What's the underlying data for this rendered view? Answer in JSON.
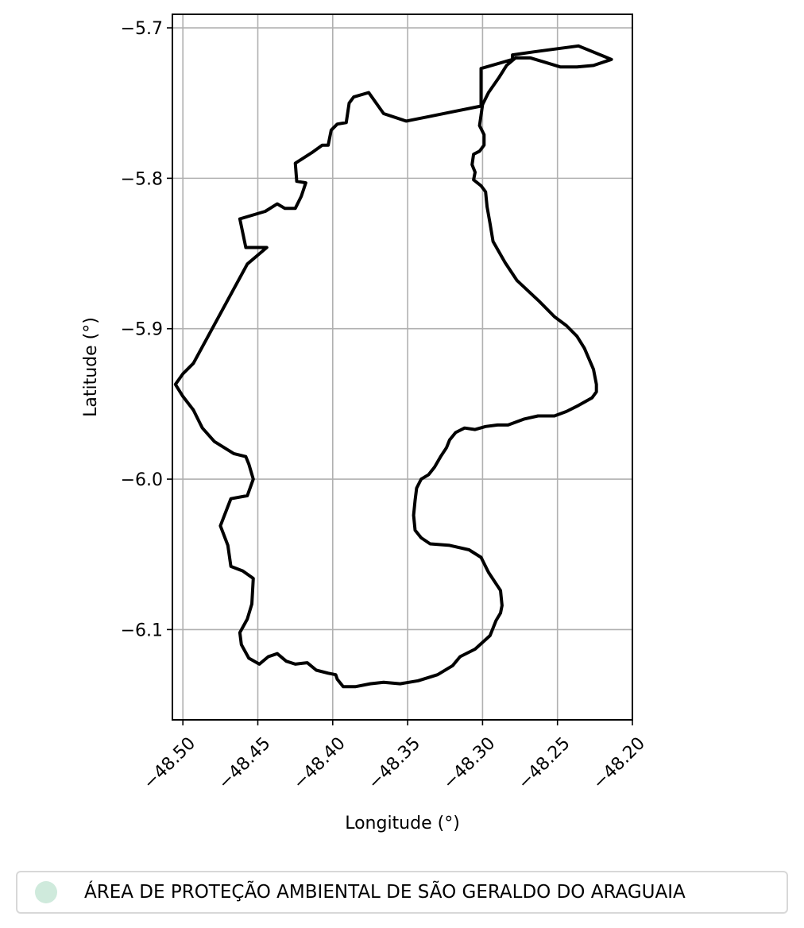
{
  "chart_data": {
    "type": "map",
    "xlabel": "Longitude (°)",
    "ylabel": "Latitude (°)",
    "xlim": [
      -48.507,
      -48.2
    ],
    "ylim": [
      -6.16,
      -5.691
    ],
    "x_ticks": [
      {
        "value": -48.5,
        "label": "−48.50"
      },
      {
        "value": -48.45,
        "label": "−48.45"
      },
      {
        "value": -48.4,
        "label": "−48.40"
      },
      {
        "value": -48.35,
        "label": "−48.35"
      },
      {
        "value": -48.3,
        "label": "−48.30"
      },
      {
        "value": -48.25,
        "label": "−48.25"
      },
      {
        "value": -48.2,
        "label": "−48.20"
      }
    ],
    "y_ticks": [
      {
        "value": -5.7,
        "label": "−5.7"
      },
      {
        "value": -5.8,
        "label": "−5.8"
      },
      {
        "value": -5.9,
        "label": "−5.9"
      },
      {
        "value": -6.0,
        "label": "−6.0"
      },
      {
        "value": -6.1,
        "label": "−6.1"
      }
    ],
    "grid": true,
    "boundary_color": "#000000",
    "fill_color": "#cfeadc",
    "legend_position": "below",
    "legend": [
      {
        "label": "ÁREA DE PROTEÇÃO AMBIENTAL DE SÃO GERALDO DO ARAGUAIA",
        "color": "#cfeadc"
      }
    ],
    "boundary": [
      [
        -48.301,
        -5.727
      ],
      [
        -48.28,
        -5.721
      ],
      [
        -48.28,
        -5.718
      ],
      [
        -48.266,
        -5.716
      ],
      [
        -48.236,
        -5.712
      ],
      [
        -48.214,
        -5.721
      ],
      [
        -48.226,
        -5.725
      ],
      [
        -48.237,
        -5.726
      ],
      [
        -48.248,
        -5.726
      ],
      [
        -48.258,
        -5.723
      ],
      [
        -48.268,
        -5.72
      ],
      [
        -48.278,
        -5.72
      ],
      [
        -48.284,
        -5.725
      ],
      [
        -48.289,
        -5.733
      ],
      [
        -48.296,
        -5.743
      ],
      [
        -48.3,
        -5.751
      ],
      [
        -48.301,
        -5.758
      ],
      [
        -48.302,
        -5.765
      ],
      [
        -48.299,
        -5.771
      ],
      [
        -48.299,
        -5.778
      ],
      [
        -48.302,
        -5.782
      ],
      [
        -48.306,
        -5.784
      ],
      [
        -48.307,
        -5.791
      ],
      [
        -48.305,
        -5.796
      ],
      [
        -48.306,
        -5.801
      ],
      [
        -48.301,
        -5.805
      ],
      [
        -48.298,
        -5.809
      ],
      [
        -48.297,
        -5.819
      ],
      [
        -48.295,
        -5.83
      ],
      [
        -48.293,
        -5.842
      ],
      [
        -48.285,
        -5.856
      ],
      [
        -48.277,
        -5.868
      ],
      [
        -48.262,
        -5.882
      ],
      [
        -48.252,
        -5.892
      ],
      [
        -48.244,
        -5.898
      ],
      [
        -48.237,
        -5.905
      ],
      [
        -48.232,
        -5.913
      ],
      [
        -48.229,
        -5.92
      ],
      [
        -48.226,
        -5.927
      ],
      [
        -48.224,
        -5.937
      ],
      [
        -48.224,
        -5.942
      ],
      [
        -48.227,
        -5.946
      ],
      [
        -48.236,
        -5.951
      ],
      [
        -48.244,
        -5.955
      ],
      [
        -48.252,
        -5.958
      ],
      [
        -48.263,
        -5.958
      ],
      [
        -48.272,
        -5.96
      ],
      [
        -48.283,
        -5.964
      ],
      [
        -48.29,
        -5.964
      ],
      [
        -48.298,
        -5.965
      ],
      [
        -48.305,
        -5.967
      ],
      [
        -48.312,
        -5.966
      ],
      [
        -48.318,
        -5.969
      ],
      [
        -48.322,
        -5.974
      ],
      [
        -48.324,
        -5.979
      ],
      [
        -48.328,
        -5.985
      ],
      [
        -48.332,
        -5.992
      ],
      [
        -48.336,
        -5.997
      ],
      [
        -48.341,
        -6.0
      ],
      [
        -48.344,
        -6.006
      ],
      [
        -48.345,
        -6.014
      ],
      [
        -48.346,
        -6.024
      ],
      [
        -48.345,
        -6.034
      ],
      [
        -48.341,
        -6.039
      ],
      [
        -48.335,
        -6.043
      ],
      [
        -48.322,
        -6.044
      ],
      [
        -48.309,
        -6.047
      ],
      [
        -48.301,
        -6.052
      ],
      [
        -48.296,
        -6.062
      ],
      [
        -48.288,
        -6.074
      ],
      [
        -48.287,
        -6.084
      ],
      [
        -48.288,
        -6.089
      ],
      [
        -48.291,
        -6.094
      ],
      [
        -48.295,
        -6.104
      ],
      [
        -48.305,
        -6.113
      ],
      [
        -48.315,
        -6.118
      ],
      [
        -48.32,
        -6.124
      ],
      [
        -48.33,
        -6.13
      ],
      [
        -48.343,
        -6.134
      ],
      [
        -48.355,
        -6.136
      ],
      [
        -48.366,
        -6.135
      ],
      [
        -48.375,
        -6.136
      ],
      [
        -48.385,
        -6.138
      ],
      [
        -48.393,
        -6.138
      ],
      [
        -48.397,
        -6.133
      ],
      [
        -48.398,
        -6.13
      ],
      [
        -48.403,
        -6.129
      ],
      [
        -48.411,
        -6.127
      ],
      [
        -48.417,
        -6.122
      ],
      [
        -48.425,
        -6.123
      ],
      [
        -48.431,
        -6.121
      ],
      [
        -48.437,
        -6.116
      ],
      [
        -48.443,
        -6.118
      ],
      [
        -48.449,
        -6.123
      ],
      [
        -48.456,
        -6.119
      ],
      [
        -48.461,
        -6.11
      ],
      [
        -48.462,
        -6.102
      ],
      [
        -48.457,
        -6.093
      ],
      [
        -48.454,
        -6.083
      ],
      [
        -48.453,
        -6.066
      ],
      [
        -48.46,
        -6.061
      ],
      [
        -48.468,
        -6.058
      ],
      [
        -48.47,
        -6.044
      ],
      [
        -48.475,
        -6.031
      ],
      [
        -48.468,
        -6.013
      ],
      [
        -48.457,
        -6.011
      ],
      [
        -48.453,
        -6.0
      ],
      [
        -48.456,
        -5.99
      ],
      [
        -48.458,
        -5.985
      ],
      [
        -48.466,
        -5.983
      ],
      [
        -48.479,
        -5.975
      ],
      [
        -48.487,
        -5.966
      ],
      [
        -48.493,
        -5.954
      ],
      [
        -48.5,
        -5.945
      ],
      [
        -48.505,
        -5.937
      ],
      [
        -48.5,
        -5.93
      ],
      [
        -48.493,
        -5.923
      ],
      [
        -48.457,
        -5.857
      ],
      [
        -48.444,
        -5.846
      ],
      [
        -48.458,
        -5.846
      ],
      [
        -48.462,
        -5.827
      ],
      [
        -48.445,
        -5.822
      ],
      [
        -48.437,
        -5.817
      ],
      [
        -48.432,
        -5.82
      ],
      [
        -48.425,
        -5.82
      ],
      [
        -48.421,
        -5.812
      ],
      [
        -48.418,
        -5.803
      ],
      [
        -48.424,
        -5.802
      ],
      [
        -48.425,
        -5.79
      ],
      [
        -48.414,
        -5.783
      ],
      [
        -48.407,
        -5.778
      ],
      [
        -48.403,
        -5.778
      ],
      [
        -48.401,
        -5.768
      ],
      [
        -48.397,
        -5.764
      ],
      [
        -48.391,
        -5.763
      ],
      [
        -48.389,
        -5.75
      ],
      [
        -48.386,
        -5.746
      ],
      [
        -48.376,
        -5.743
      ],
      [
        -48.366,
        -5.757
      ],
      [
        -48.351,
        -5.762
      ],
      [
        -48.336,
        -5.759
      ],
      [
        -48.321,
        -5.756
      ],
      [
        -48.301,
        -5.752
      ],
      [
        -48.301,
        -5.727
      ]
    ]
  }
}
